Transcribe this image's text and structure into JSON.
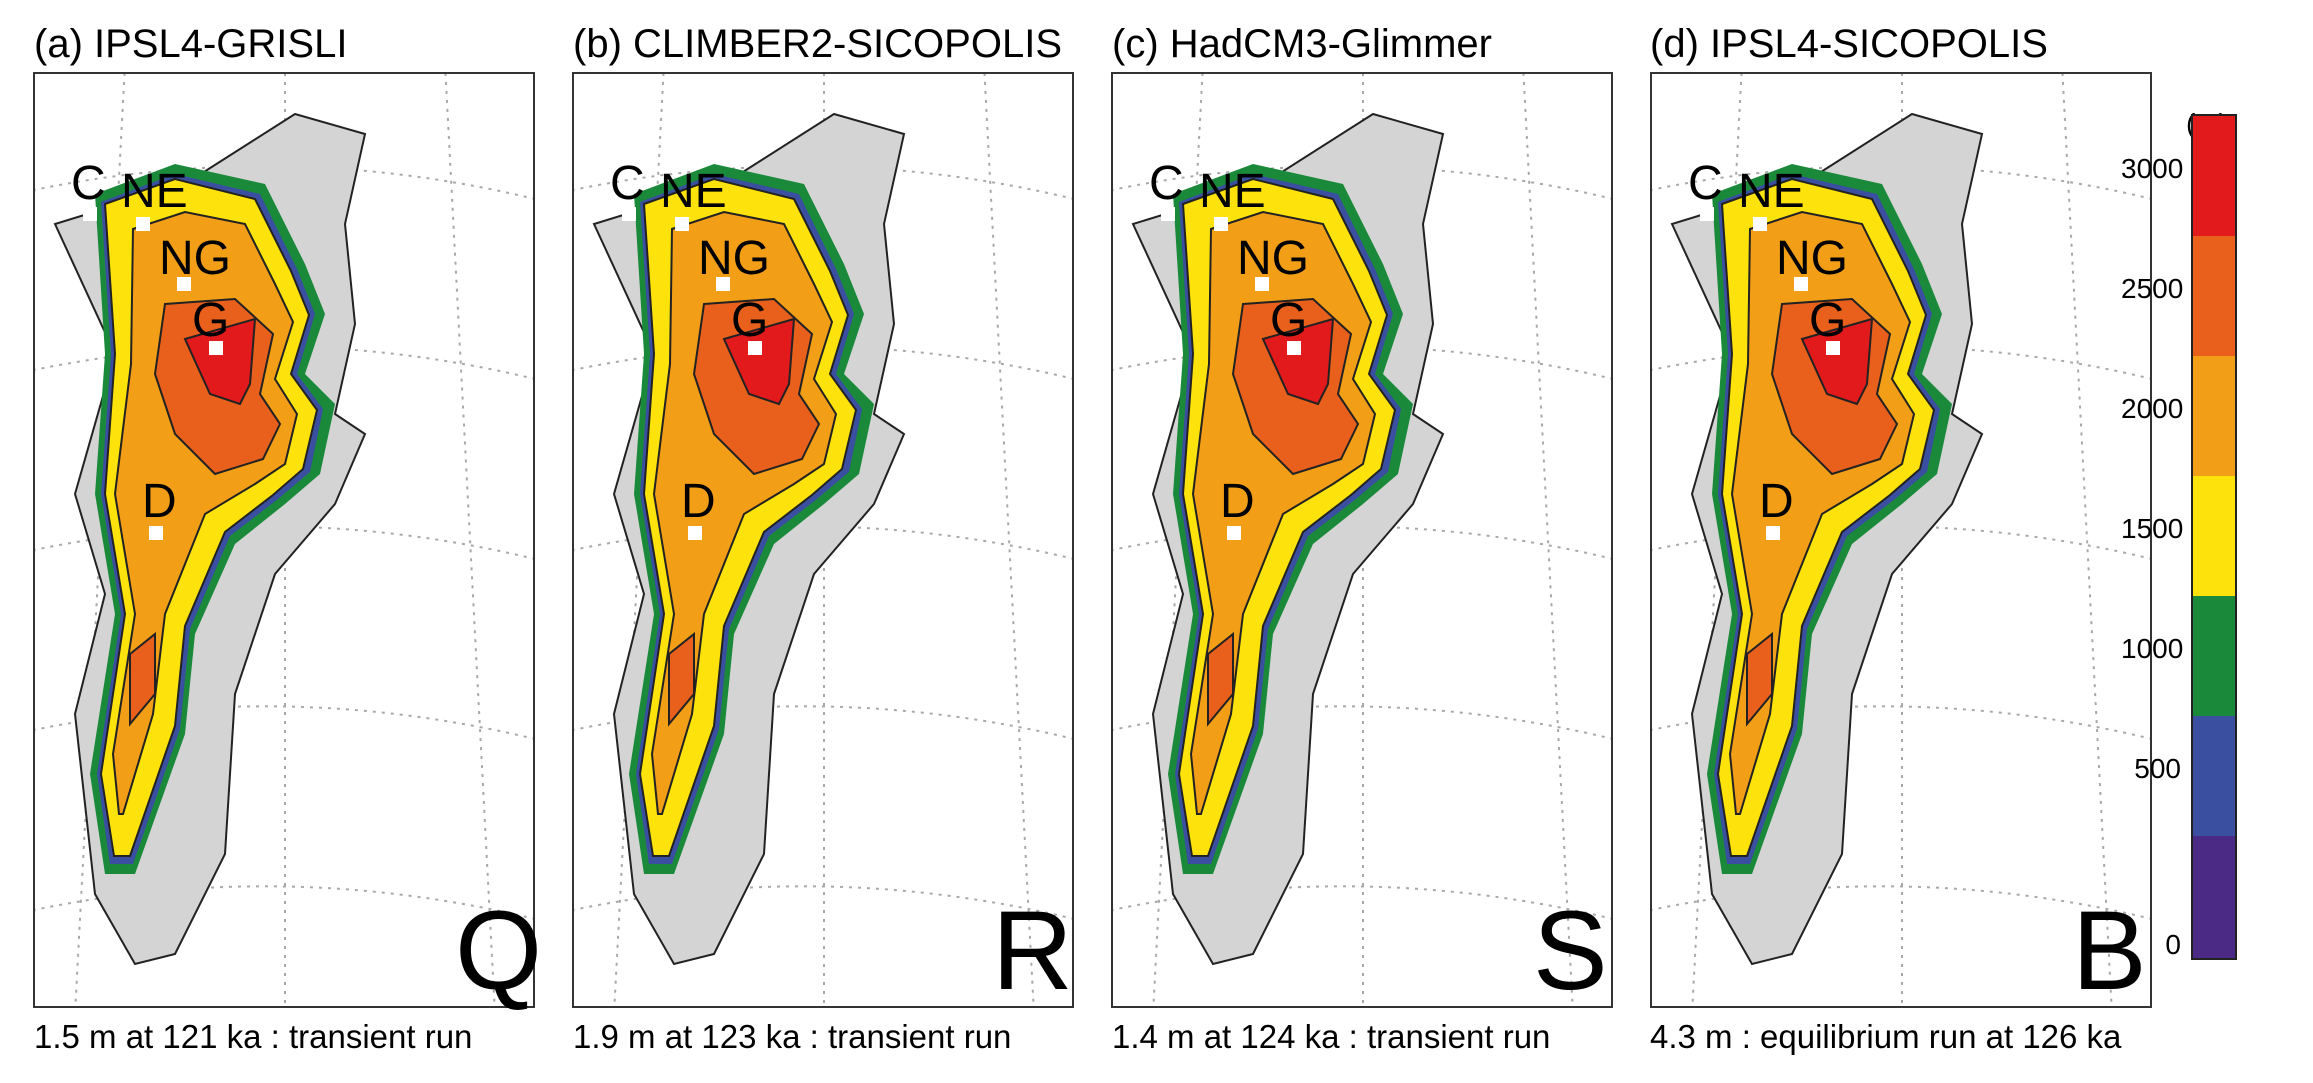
{
  "panels": [
    {
      "title": "(a) IPSL4-GRISLI",
      "letter": "Q",
      "caption": "1.5 m at 121 ka : transient run"
    },
    {
      "title": "(b) CLIMBER2-SICOPOLIS",
      "letter": "R",
      "caption": "1.9 m at 123 ka : transient run"
    },
    {
      "title": "(c) HadCM3-Glimmer",
      "letter": "S",
      "caption": "1.4 m at 124 ka : transient run"
    },
    {
      "title": "(d) IPSL4-SICOPOLIS",
      "letter": "B",
      "caption": "4.3 m : equilibrium run at 126 ka"
    }
  ],
  "sites": [
    "C",
    "NE",
    "NG",
    "G",
    "D"
  ],
  "colorbar": {
    "unit": "(m)",
    "ticks": [
      "3000",
      "2500",
      "2000",
      "1500",
      "1000",
      "500",
      "0"
    ],
    "bands_top_to_bottom": [
      "#e31a1c",
      "#e8601c",
      "#f29e17",
      "#fde30b",
      "#1a8a3a",
      "#3a4fa0",
      "#4b2a85"
    ]
  },
  "colors": {
    "land": "#d4d4d4",
    "graticule": "#999999"
  }
}
